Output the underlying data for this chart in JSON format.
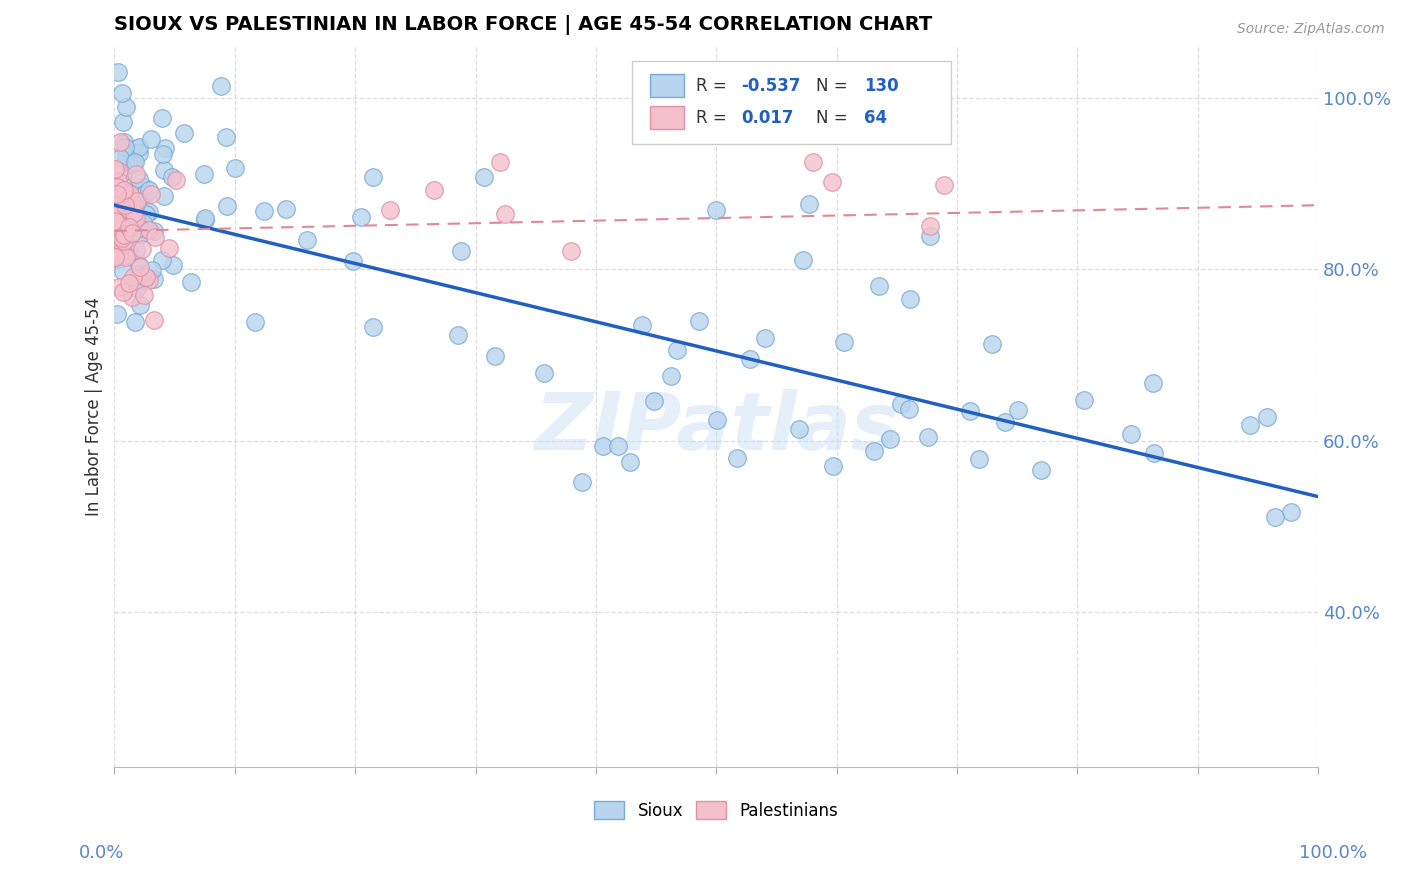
{
  "title": "SIOUX VS PALESTINIAN IN LABOR FORCE | AGE 45-54 CORRELATION CHART",
  "source_text": "Source: ZipAtlas.com",
  "ylabel": "In Labor Force | Age 45-54",
  "sioux_color": "#b8d4ee",
  "sioux_edge_color": "#7aaad4",
  "palestinians_color": "#f4c0cc",
  "palestinians_edge_color": "#e090a8",
  "blue_line_color": "#2060c0",
  "pink_line_color": "#e08898",
  "watermark": "ZIPatlas",
  "blue_trend_y_start": 0.875,
  "blue_trend_y_end": 0.535,
  "pink_trend_y_start": 0.845,
  "pink_trend_y_end": 0.875,
  "xmin": 0.0,
  "xmax": 1.0,
  "ymin": 0.22,
  "ymax": 1.06,
  "R_sioux": -0.537,
  "N_sioux": 130,
  "R_palestinians": 0.017,
  "N_palestinians": 64,
  "ytick_values": [
    0.4,
    0.6,
    0.8,
    1.0
  ],
  "ytick_labels": [
    "40.0%",
    "60.0%",
    "80.0%",
    "100.0%"
  ],
  "grid_color": "#dddddd",
  "legend_box_color": "#f0f0f0",
  "sioux_seed": 42,
  "palestinians_seed": 7
}
